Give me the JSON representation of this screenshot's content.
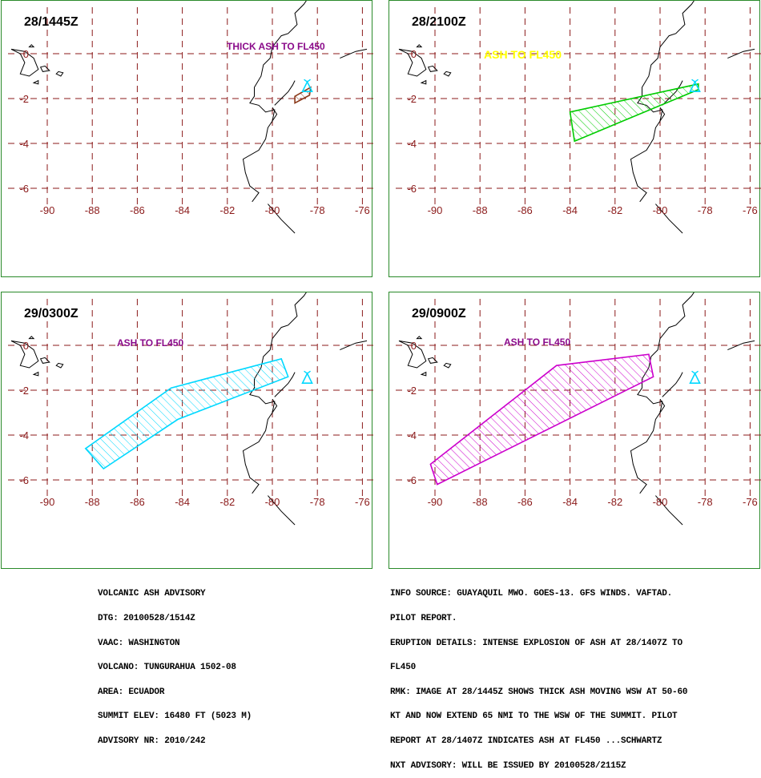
{
  "map_axes": {
    "lon_ticks": [
      "-90",
      "-88",
      "-86",
      "-84",
      "-82",
      "-80",
      "-78",
      "-76"
    ],
    "lat_ticks": [
      "0",
      "-2",
      "-4",
      "-6"
    ]
  },
  "colors": {
    "grid": "#8b1a1a",
    "coast": "#000000",
    "volcano": "#00d8ff",
    "frame": "#2a8a2a"
  },
  "panels": [
    {
      "time": "28/1445Z",
      "label": "THICK ASH TO FL450",
      "label_color": "#8a0a8a",
      "ash_color": "#8b3a1a",
      "ash_polygon": [
        [
          -79.0,
          -1.9
        ],
        [
          -79.0,
          -2.2
        ],
        [
          -78.35,
          -1.85
        ],
        [
          -78.3,
          -1.5
        ]
      ],
      "volcano": [
        -78.45,
        -1.47
      ]
    },
    {
      "time": "28/2100Z",
      "label": "ASH TO FL450",
      "label_color": "#ffff00",
      "ash_color": "#00cc00",
      "ash_polygon": [
        [
          -84.0,
          -2.6
        ],
        [
          -78.3,
          -1.35
        ],
        [
          -78.3,
          -1.6
        ],
        [
          -83.8,
          -3.9
        ]
      ],
      "volcano": [
        -78.45,
        -1.47
      ]
    },
    {
      "time": "29/0300Z",
      "label": "ASH TO FL450",
      "label_color": "#8a0a8a",
      "ash_color": "#00d8ff",
      "ash_polygon": [
        [
          -88.3,
          -4.6
        ],
        [
          -84.5,
          -1.9
        ],
        [
          -79.6,
          -0.6
        ],
        [
          -79.3,
          -1.4
        ],
        [
          -84.2,
          -3.3
        ],
        [
          -87.5,
          -5.5
        ]
      ],
      "volcano": [
        -78.45,
        -1.47
      ]
    },
    {
      "time": "29/0900Z",
      "label": "ASH TO FL450",
      "label_color": "#8a0a8a",
      "ash_color": "#cc00cc",
      "ash_polygon": [
        [
          -90.2,
          -5.3
        ],
        [
          -84.6,
          -0.9
        ],
        [
          -80.5,
          -0.4
        ],
        [
          -80.3,
          -1.4
        ],
        [
          -89.9,
          -6.2
        ]
      ],
      "volcano": [
        -78.45,
        -1.47
      ]
    }
  ],
  "advisory_left": [
    "VOLCANIC ASH ADVISORY",
    "DTG: 20100528/1514Z",
    "VAAC: WASHINGTON",
    "VOLCANO: TUNGURAHUA 1502-08",
    "AREA: ECUADOR",
    "SUMMIT ELEV: 16480 FT (5023 M)",
    "ADVISORY NR: 2010/242"
  ],
  "advisory_right": [
    "INFO SOURCE: GUAYAQUIL MWO. GOES-13. GFS WINDS. VAFTAD.",
    "PILOT REPORT.",
    "ERUPTION DETAILS: INTENSE EXPLOSION OF ASH AT 28/1407Z TO",
    "FL450",
    "RMK: IMAGE AT 28/1445Z SHOWS THICK ASH MOVING WSW AT 50-60",
    "KT AND NOW EXTEND 65 NMI TO THE WSW OF THE SUMMIT. PILOT",
    "REPORT AT 28/1407Z INDICATES ASH AT FL450 ...SCHWARTZ",
    "NXT ADVISORY: WILL BE ISSUED BY 20100528/2115Z"
  ]
}
